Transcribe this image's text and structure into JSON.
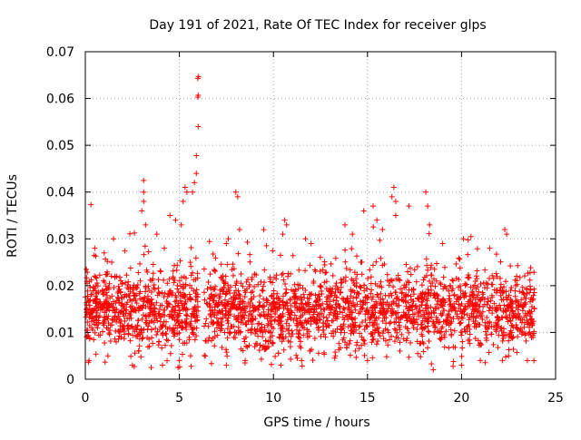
{
  "chart_data": {
    "type": "scatter",
    "title": "Day 191 of 2021, Rate Of TEC Index for receiver glps",
    "xlabel": "GPS time / hours",
    "ylabel": "ROTI / TECUs",
    "xlim": [
      0,
      25
    ],
    "ylim": [
      0,
      0.07
    ],
    "xticks": [
      0,
      5,
      10,
      15,
      20,
      25
    ],
    "yticks": [
      0,
      0.01,
      0.02,
      0.03,
      0.04,
      0.05,
      0.06,
      0.07
    ],
    "xtick_labels": [
      "0",
      "5",
      "10",
      "15",
      "20",
      "25"
    ],
    "ytick_labels": [
      "0",
      "0.01",
      "0.02",
      "0.03",
      "0.04",
      "0.05",
      "0.06",
      "0.07"
    ],
    "grid": true,
    "marker": "plus",
    "color": "#ff0000",
    "gap_hours": [
      6.0,
      6.3
    ],
    "points": [
      [
        0.3,
        0.0373
      ],
      [
        0.5,
        0.028
      ],
      [
        1.0,
        0.027
      ],
      [
        1.5,
        0.03
      ],
      [
        3.1,
        0.0425
      ],
      [
        3.1,
        0.04
      ],
      [
        3.1,
        0.038
      ],
      [
        3.0,
        0.036
      ],
      [
        3.2,
        0.033
      ],
      [
        3.8,
        0.031
      ],
      [
        4.2,
        0.028
      ],
      [
        4.5,
        0.035
      ],
      [
        4.8,
        0.034
      ],
      [
        5.1,
        0.033
      ],
      [
        5.2,
        0.038
      ],
      [
        5.3,
        0.041
      ],
      [
        5.4,
        0.04
      ],
      [
        5.7,
        0.04
      ],
      [
        5.8,
        0.042
      ],
      [
        5.9,
        0.044
      ],
      [
        5.9,
        0.0478
      ],
      [
        6.0,
        0.054
      ],
      [
        5.98,
        0.0603
      ],
      [
        6.0,
        0.0607
      ],
      [
        5.98,
        0.0643
      ],
      [
        6.02,
        0.0647
      ],
      [
        7.5,
        0.029
      ],
      [
        7.6,
        0.03
      ],
      [
        8.0,
        0.04
      ],
      [
        8.1,
        0.039
      ],
      [
        8.2,
        0.032
      ],
      [
        10.6,
        0.034
      ],
      [
        10.7,
        0.033
      ],
      [
        10.5,
        0.031
      ],
      [
        11.7,
        0.03
      ],
      [
        12.0,
        0.029
      ],
      [
        13.8,
        0.033
      ],
      [
        14.2,
        0.031
      ],
      [
        14.8,
        0.036
      ],
      [
        15.3,
        0.037
      ],
      [
        15.5,
        0.034
      ],
      [
        15.8,
        0.032
      ],
      [
        16.3,
        0.039
      ],
      [
        16.4,
        0.041
      ],
      [
        16.5,
        0.038
      ],
      [
        16.5,
        0.035
      ],
      [
        17.2,
        0.037
      ],
      [
        18.1,
        0.04
      ],
      [
        18.2,
        0.037
      ],
      [
        18.3,
        0.033
      ],
      [
        19.0,
        0.029
      ],
      [
        20.1,
        0.03
      ],
      [
        21.5,
        0.028
      ],
      [
        22.3,
        0.032
      ],
      [
        22.4,
        0.031
      ],
      [
        0.2,
        0.004
      ],
      [
        1.2,
        0.005
      ],
      [
        2.5,
        0.003
      ],
      [
        2.6,
        0.0027
      ],
      [
        3.5,
        0.0025
      ],
      [
        4.1,
        0.003
      ],
      [
        5.0,
        0.004
      ],
      [
        7.5,
        0.003
      ],
      [
        8.5,
        0.004
      ],
      [
        10.4,
        0.003
      ],
      [
        11.5,
        0.004
      ],
      [
        13.3,
        0.005
      ],
      [
        15.0,
        0.004
      ],
      [
        18.5,
        0.002
      ],
      [
        20.0,
        0.003
      ],
      [
        21.0,
        0.004
      ],
      [
        22.5,
        0.005
      ],
      [
        23.5,
        0.004
      ]
    ]
  }
}
